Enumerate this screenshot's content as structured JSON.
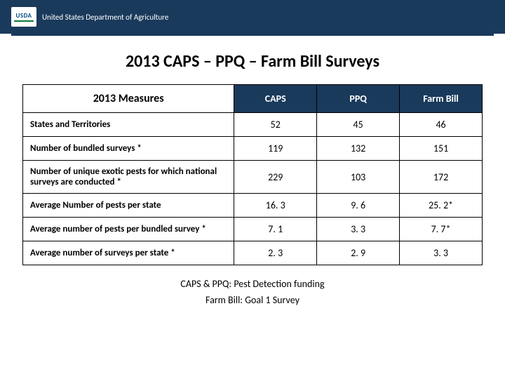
{
  "header": {
    "logo_text": "USDA",
    "dept_text": "United States Department of Agriculture"
  },
  "title": "2013 CAPS – PPQ – Farm Bill Surveys",
  "table": {
    "header_measures": "2013 Measures",
    "columns": [
      "CAPS",
      "PPQ",
      "Farm Bill"
    ],
    "rows": [
      {
        "label": "States and Territories",
        "values": [
          "52",
          "45",
          "46"
        ]
      },
      {
        "label": "Number of bundled surveys *",
        "values": [
          "119",
          "132",
          "151"
        ]
      },
      {
        "label": "Number of unique exotic pests for which national surveys are conducted *",
        "values": [
          "229",
          "103",
          "172"
        ]
      },
      {
        "label": "Average Number of pests per state",
        "values": [
          "16. 3",
          "9. 6",
          "25. 2*"
        ]
      },
      {
        "label": "Average number of pests per bundled survey *",
        "values": [
          "7. 1",
          "3. 3",
          "7. 7*"
        ]
      },
      {
        "label": "Average number of surveys per state *",
        "values": [
          "2. 3",
          "2. 9",
          "3. 3"
        ]
      }
    ]
  },
  "footnotes": {
    "line1": "CAPS & PPQ: Pest Detection funding",
    "line2": "Farm Bill: Goal 1 Survey"
  },
  "colors": {
    "header_bg": "#1a3a5c",
    "col_head_bg": "#1a3a5c",
    "col_head_fg": "#ffffff",
    "border": "#000000",
    "title_color": "#000000",
    "body_bg": "#ffffff"
  },
  "typography": {
    "title_fontsize": 24,
    "header_fontsize": 16,
    "cell_fontsize": 14,
    "label_fontsize": 13,
    "font_family": "Calibri"
  }
}
